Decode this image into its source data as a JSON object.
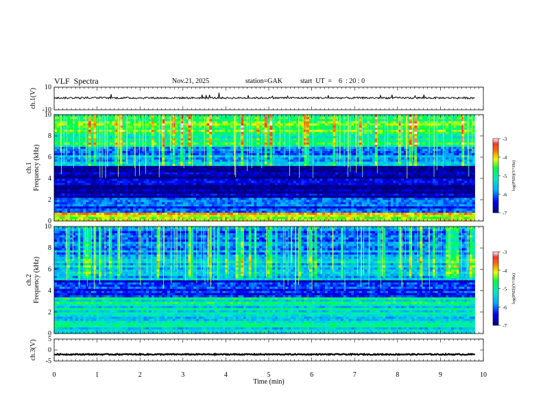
{
  "header": {
    "title": "VLF  Spectra",
    "date": "Nov.21, 2025",
    "station": "station=GAK",
    "start_ut": "start  UT  =    6  : 20 : 0"
  },
  "chart_data": [
    {
      "type": "line",
      "ylabel": "ch.1(V)",
      "yticks": [
        "10",
        "-10"
      ],
      "ylim": [
        -10,
        10
      ],
      "xlim": [
        0,
        10
      ],
      "series": [
        {
          "baseline": 0.5,
          "color": "#000000"
        }
      ]
    },
    {
      "type": "heatmap",
      "ylabel": "ch.1\nFrequency  (kHz)",
      "ylim": [
        0,
        10
      ],
      "yticks": [
        "0",
        "2",
        "4",
        "6",
        "8",
        "10"
      ],
      "xlim": [
        0,
        10
      ],
      "data_end_min": 9.8,
      "colorbar": {
        "label": "log(PSD)(V²/Hz)",
        "ticks": [
          "-3",
          "-4",
          "-5",
          "-6",
          "-7"
        ],
        "range": [
          -7,
          -3
        ]
      },
      "spectral_bands_khz": [
        {
          "from": 0,
          "to": 0.9,
          "level": -4.2
        },
        {
          "from": 0.9,
          "to": 2.2,
          "level": -6.2
        },
        {
          "from": 2.2,
          "to": 5.2,
          "level": -6.8
        },
        {
          "from": 5.2,
          "to": 7.0,
          "level": -5.8
        },
        {
          "from": 7.0,
          "to": 8.5,
          "level": -5.0
        },
        {
          "from": 8.5,
          "to": 10,
          "level": -4.6
        }
      ]
    },
    {
      "type": "heatmap",
      "ylabel": "ch.2\nFrequency  (kHz)",
      "ylim": [
        0,
        10
      ],
      "yticks": [
        "0",
        "2",
        "4",
        "6",
        "8",
        "10"
      ],
      "xlim": [
        0,
        10
      ],
      "data_end_min": 9.8,
      "colorbar": {
        "label": "log(PSD)(V²/Hz)",
        "ticks": [
          "-3",
          "-4",
          "-5",
          "-6",
          "-7"
        ],
        "range": [
          -7,
          -3
        ]
      },
      "spectral_bands_khz": [
        {
          "from": 0,
          "to": 0.8,
          "level": -5.2
        },
        {
          "from": 0.8,
          "to": 3.5,
          "level": -5.2
        },
        {
          "from": 3.5,
          "to": 5.0,
          "level": -6.4
        },
        {
          "from": 5.0,
          "to": 7.0,
          "level": -5.4
        },
        {
          "from": 7.0,
          "to": 10,
          "level": -5.8
        }
      ]
    },
    {
      "type": "line",
      "ylabel": "ch.3(V)",
      "yticks": [
        "5",
        "0",
        "-5"
      ],
      "ylim": [
        -5,
        5
      ],
      "xlim": [
        0,
        10
      ],
      "series": [
        {
          "baseline": -2,
          "color": "#000000"
        }
      ]
    }
  ],
  "xaxis": {
    "label": "Time  (min)",
    "ticks": [
      "0",
      "1",
      "2",
      "3",
      "4",
      "5",
      "6",
      "7",
      "8",
      "9",
      "10"
    ]
  }
}
